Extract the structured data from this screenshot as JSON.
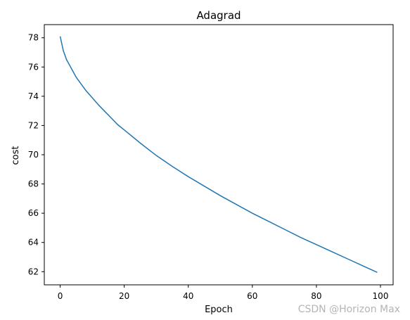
{
  "chart_data": {
    "type": "line",
    "title": "Adagrad",
    "xlabel": "Epoch",
    "ylabel": "cost",
    "xlim": [
      -4.95,
      103.95
    ],
    "ylim": [
      61.1,
      78.9
    ],
    "xticks": [
      0,
      20,
      40,
      60,
      80,
      100
    ],
    "yticks": [
      62,
      64,
      66,
      68,
      70,
      72,
      74,
      76,
      78
    ],
    "grid": false,
    "legend": null,
    "line_color": "#1f77b4",
    "series": [
      {
        "x": [
          0,
          1,
          2,
          3,
          4,
          5,
          6,
          7,
          8,
          9,
          10,
          12,
          14,
          16,
          18,
          20,
          25,
          30,
          35,
          40,
          45,
          50,
          55,
          60,
          65,
          70,
          75,
          80,
          85,
          90,
          95,
          99
        ],
        "values": [
          78.1,
          77.1,
          76.5,
          76.1,
          75.7,
          75.3,
          75.0,
          74.7,
          74.4,
          74.15,
          73.9,
          73.4,
          72.95,
          72.5,
          72.05,
          71.7,
          70.8,
          69.95,
          69.2,
          68.5,
          67.85,
          67.2,
          66.6,
          66.0,
          65.45,
          64.9,
          64.35,
          63.85,
          63.35,
          62.85,
          62.35,
          61.95
        ]
      }
    ]
  },
  "watermark": "CSDN @Horizon Max"
}
